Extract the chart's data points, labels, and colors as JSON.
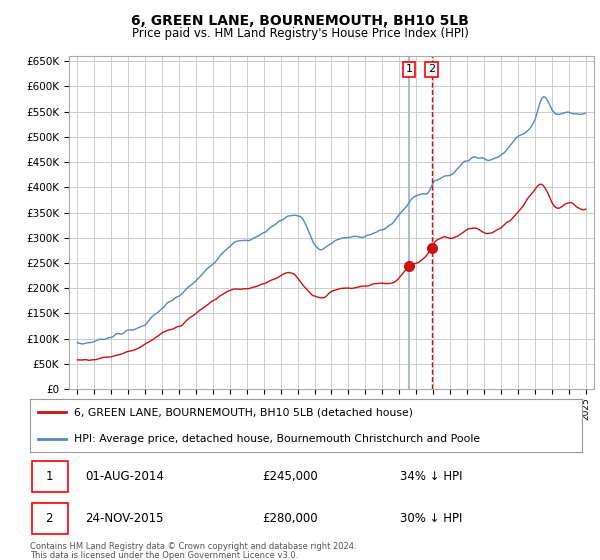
{
  "title": "6, GREEN LANE, BOURNEMOUTH, BH10 5LB",
  "subtitle": "Price paid vs. HM Land Registry's House Price Index (HPI)",
  "background_color": "#ffffff",
  "grid_color": "#cccccc",
  "hpi_color": "#5588bb",
  "price_color": "#cc1111",
  "transaction1_date": 2014.58,
  "transaction1_price": 245000,
  "transaction2_date": 2015.92,
  "transaction2_price": 280000,
  "footer_line1": "Contains HM Land Registry data © Crown copyright and database right 2024.",
  "footer_line2": "This data is licensed under the Open Government Licence v3.0.",
  "legend_label1": "6, GREEN LANE, BOURNEMOUTH, BH10 5LB (detached house)",
  "legend_label2": "HPI: Average price, detached house, Bournemouth Christchurch and Poole",
  "table_row1": [
    "1",
    "01-AUG-2014",
    "£245,000",
    "34% ↓ HPI"
  ],
  "table_row2": [
    "2",
    "24-NOV-2015",
    "£280,000",
    "30% ↓ HPI"
  ],
  "xmin": 1994.5,
  "xmax": 2025.5,
  "ymin": 0,
  "ymax": 660000,
  "yticks": [
    0,
    50000,
    100000,
    150000,
    200000,
    250000,
    300000,
    350000,
    400000,
    450000,
    500000,
    550000,
    600000,
    650000
  ]
}
